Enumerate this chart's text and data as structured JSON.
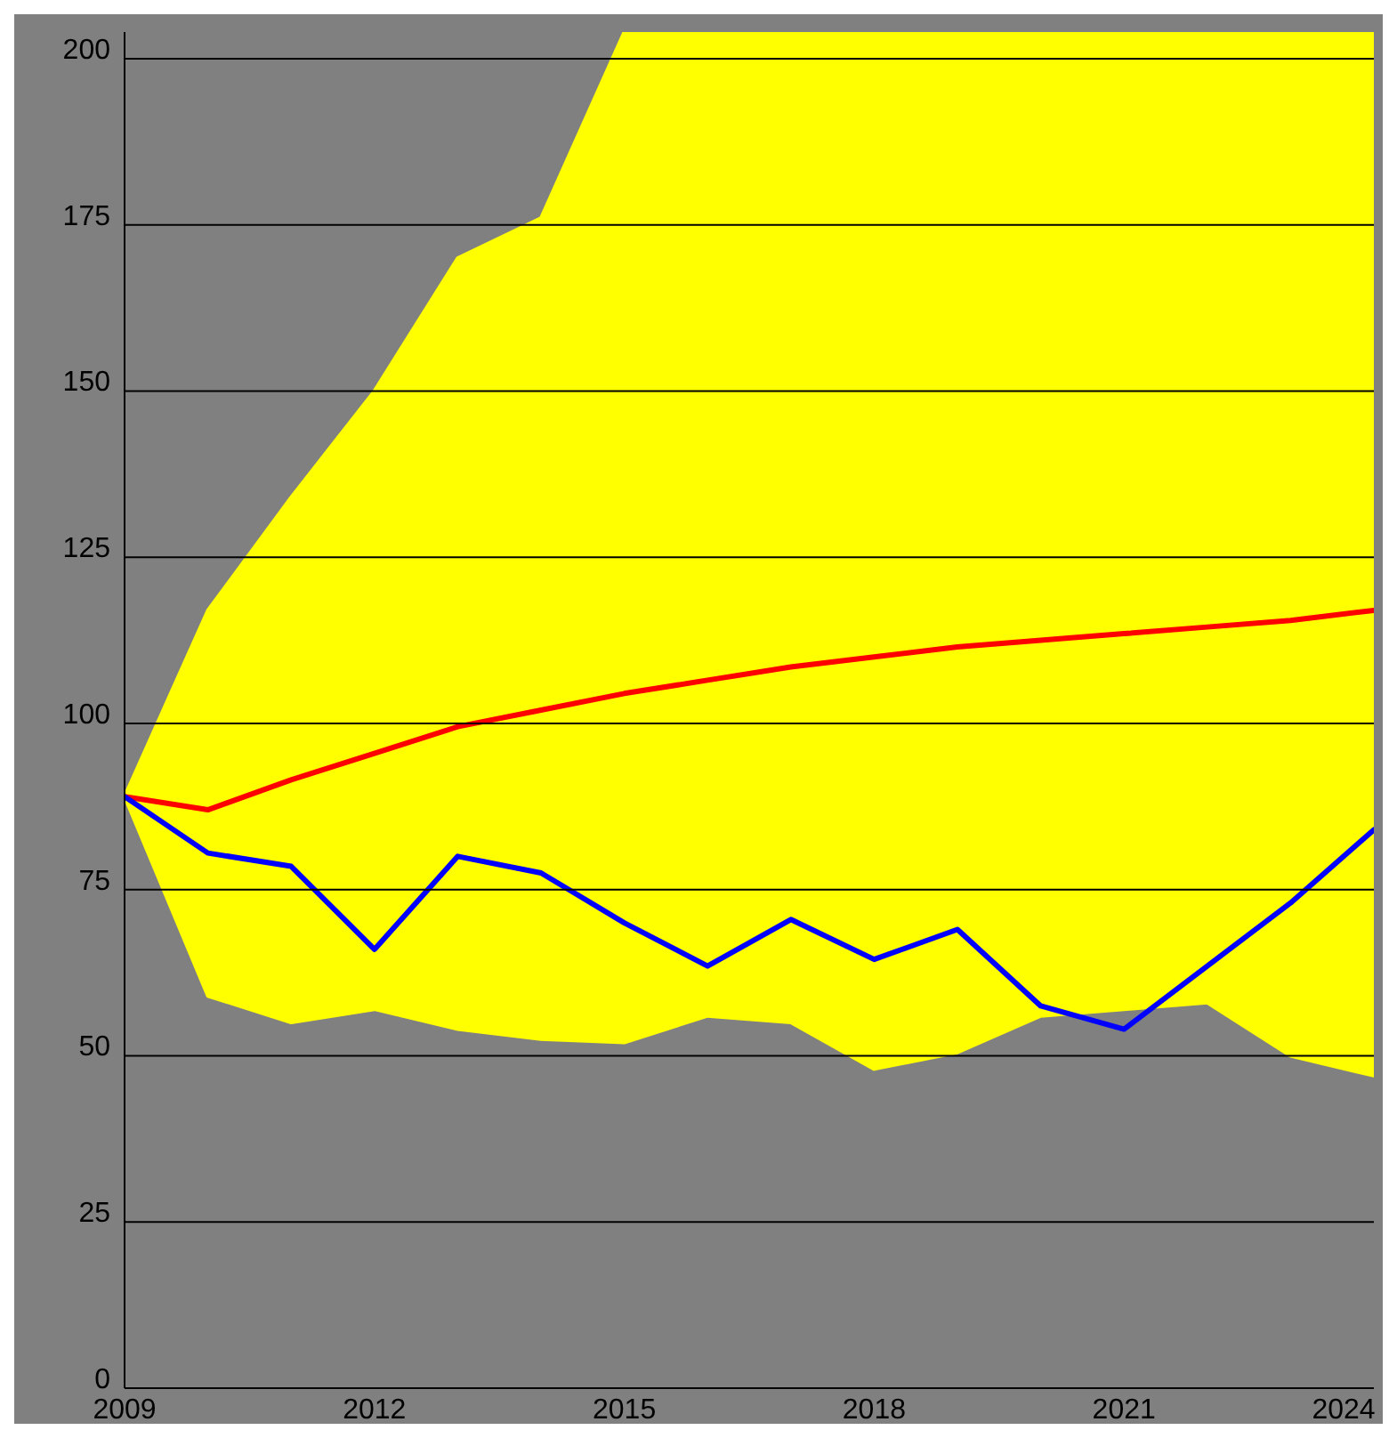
{
  "chart_data": {
    "type": "line",
    "x": [
      2009,
      2010,
      2011,
      2012,
      2013,
      2014,
      2015,
      2016,
      2017,
      2018,
      2019,
      2020,
      2021,
      2022,
      2023,
      2024
    ],
    "series": [
      {
        "color": "#ff0000",
        "values": [
          89,
          87,
          91.5,
          95.5,
          99.5,
          102,
          104.5,
          106.5,
          108.5,
          110,
          111.5,
          112.5,
          113.5,
          114.5,
          115.5,
          117
        ],
        "lower": [
          89,
          59,
          55,
          57,
          54,
          52.5,
          52,
          56,
          55,
          48,
          50.5,
          56,
          57,
          58,
          50,
          47
        ],
        "upper": [
          89,
          117,
          134,
          150,
          170,
          176,
          204,
          204,
          204,
          204,
          204,
          204,
          204,
          204,
          204,
          204
        ]
      },
      {
        "color": "#0000ff",
        "values": [
          89,
          80.5,
          78.5,
          66,
          80,
          77.5,
          70,
          63.5,
          70.5,
          64.5,
          69,
          57.5,
          54,
          63.5,
          73,
          84
        ]
      }
    ],
    "xlim": [
      2009,
      2024
    ],
    "xticks": [
      2009,
      2012,
      2015,
      2018,
      2021,
      2024
    ],
    "ylim": [
      0,
      204
    ],
    "yticks": [
      0,
      25,
      50,
      75,
      100,
      125,
      150,
      175,
      200
    ],
    "grid": "y"
  }
}
